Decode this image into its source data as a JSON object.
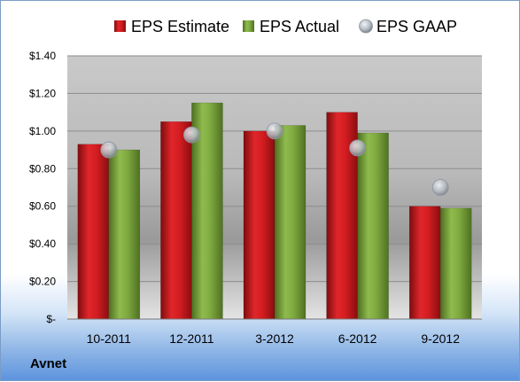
{
  "chart_data": {
    "type": "bar",
    "categories": [
      "10-2011",
      "12-2011",
      "3-2012",
      "6-2012",
      "9-2012"
    ],
    "series": [
      {
        "name": "EPS Estimate",
        "kind": "bar",
        "color": "#c0161a",
        "values": [
          0.93,
          1.05,
          1.0,
          1.1,
          0.6
        ]
      },
      {
        "name": "EPS Actual",
        "kind": "bar",
        "color": "#6f9a33",
        "values": [
          0.9,
          1.15,
          1.03,
          0.99,
          0.59
        ]
      },
      {
        "name": "EPS GAAP",
        "kind": "marker",
        "color": "#b8bec6",
        "values": [
          0.9,
          0.98,
          1.0,
          0.91,
          0.7
        ]
      }
    ],
    "y_ticks": [
      "$-",
      "$0.20",
      "$0.40",
      "$0.60",
      "$0.80",
      "$1.00",
      "$1.20",
      "$1.40"
    ],
    "ylim": [
      0,
      1.4
    ],
    "grid": true,
    "legend": "top"
  },
  "company": "Avnet"
}
